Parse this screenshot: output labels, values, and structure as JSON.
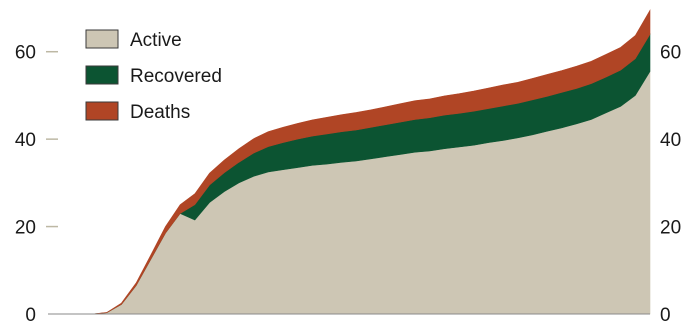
{
  "chart_data": {
    "type": "area",
    "stacked": true,
    "title": "",
    "xlabel": "",
    "ylabel": "",
    "ylim": [
      0,
      70
    ],
    "yticks": [
      0,
      20,
      40,
      60
    ],
    "ytick_labels": [
      "0",
      "20",
      "40",
      "60"
    ],
    "grid": false,
    "legend_position": "top-left",
    "x": [
      0,
      5,
      10,
      15,
      20,
      25,
      30,
      35,
      40,
      45,
      50,
      55,
      60,
      65,
      70,
      75,
      80,
      85,
      90,
      95,
      100,
      105,
      110,
      115,
      120,
      125,
      130,
      135,
      140,
      145,
      150,
      155,
      160,
      165,
      170,
      175,
      180,
      185,
      190,
      195,
      200,
      205
    ],
    "series": [
      {
        "name": "Active",
        "color": "#cdc6b4",
        "values": [
          0,
          0,
          0,
          0,
          0.3,
          2.2,
          6.5,
          12.5,
          18.5,
          23,
          21.5,
          25.5,
          28,
          30,
          31.5,
          32.5,
          33,
          33.5,
          34,
          34.3,
          34.7,
          35,
          35.5,
          36,
          36.5,
          37,
          37.3,
          37.8,
          38.2,
          38.6,
          39.2,
          39.7,
          40.3,
          41,
          41.8,
          42.6,
          43.5,
          44.5,
          46,
          47.5,
          50,
          55.5
        ]
      },
      {
        "name": "Recovered",
        "color": "#0c5432",
        "values": [
          0,
          0,
          0,
          0,
          0,
          0,
          0,
          0,
          0,
          0,
          3.5,
          4,
          4.3,
          4.7,
          5.3,
          5.8,
          6.2,
          6.5,
          6.7,
          6.9,
          7,
          7.1,
          7.2,
          7.3,
          7.4,
          7.5,
          7.6,
          7.7,
          7.7,
          7.8,
          7.8,
          7.9,
          7.9,
          8,
          8,
          8.1,
          8.1,
          8.2,
          8.2,
          8.3,
          8.4,
          8.5
        ]
      },
      {
        "name": "Deaths",
        "color": "#b04525",
        "values": [
          0,
          0,
          0,
          0,
          0.05,
          0.3,
          0.6,
          1,
          1.5,
          2,
          2.5,
          2.7,
          2.9,
          3.1,
          3.3,
          3.4,
          3.5,
          3.6,
          3.7,
          3.8,
          3.9,
          4,
          4,
          4.1,
          4.2,
          4.3,
          4.3,
          4.4,
          4.5,
          4.6,
          4.7,
          4.8,
          4.8,
          4.9,
          5,
          5,
          5.1,
          5.1,
          5.2,
          5.2,
          5.3,
          5.5
        ]
      }
    ]
  }
}
